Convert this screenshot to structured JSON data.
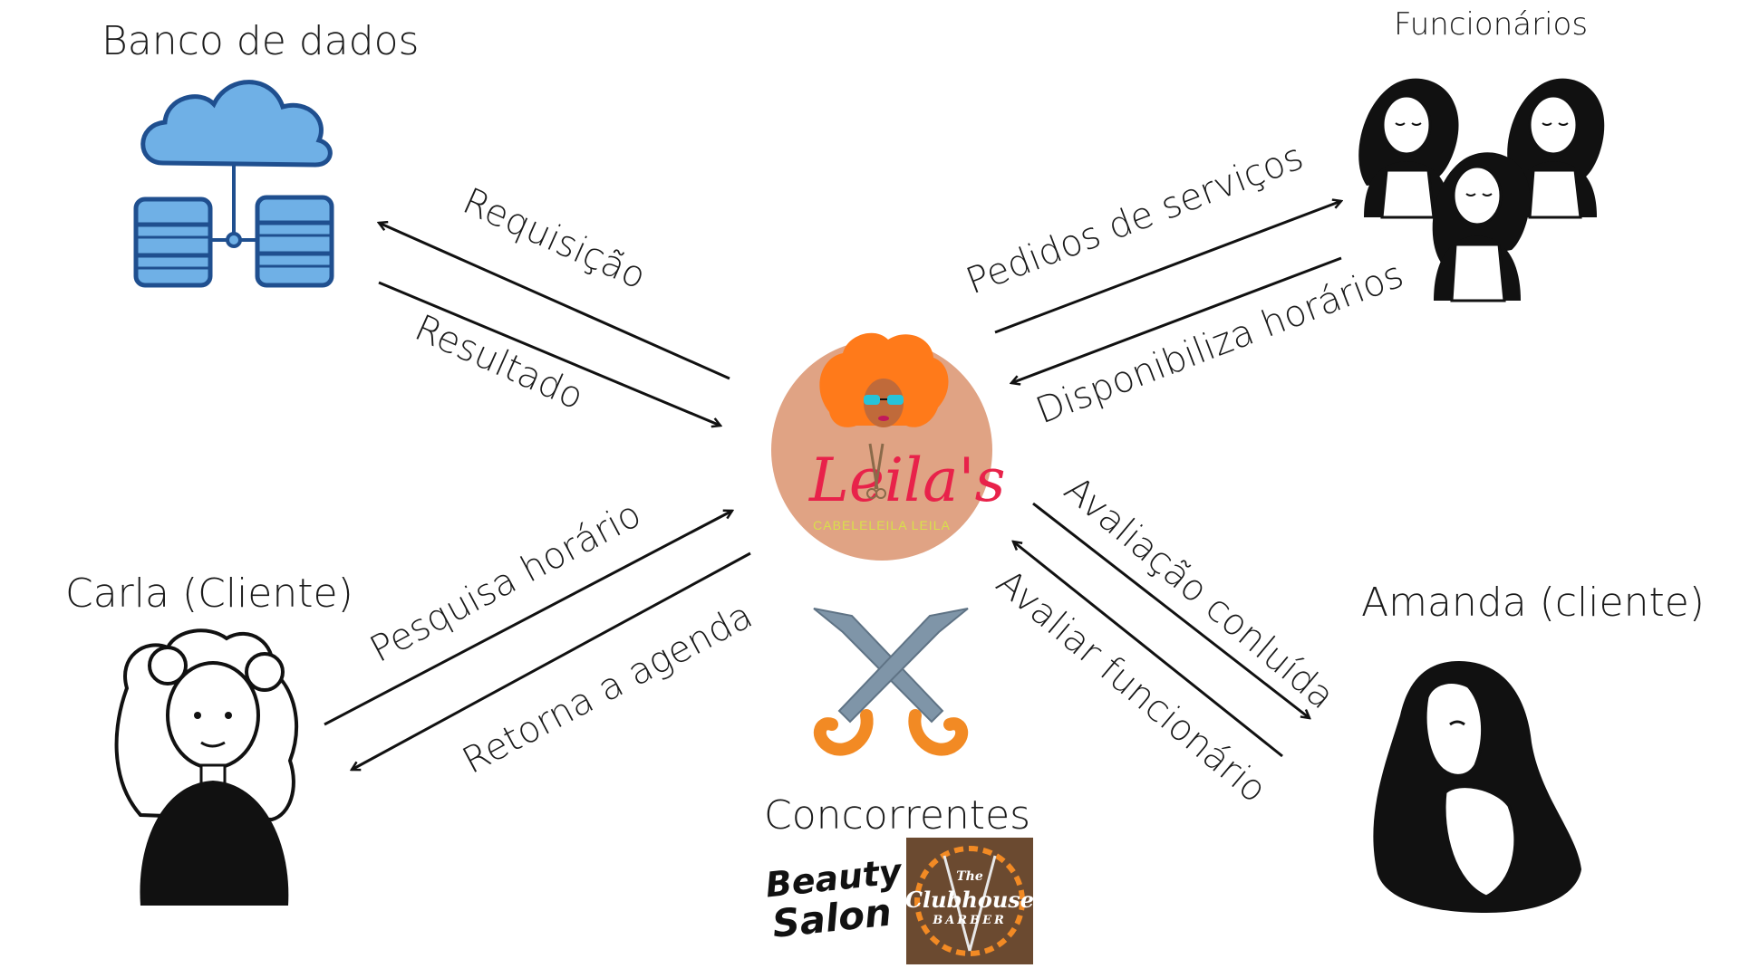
{
  "nodes": {
    "database": {
      "label": "Banco de dados"
    },
    "staff": {
      "label": "Funcionários"
    },
    "carla": {
      "label": "Carla (Cliente)"
    },
    "amanda": {
      "label": "Amanda (cliente)"
    },
    "competitors": {
      "label": "Concorrentes"
    },
    "center": {
      "logo_text": "Leila's",
      "subtitle": "CABELELEILA LEILA"
    }
  },
  "edges": {
    "requisicao": "Requisição",
    "resultado": "Resultado",
    "pedidos": "Pedidos de serviços",
    "disponibiliza": "Disponibiliza horários",
    "pesquisa": "Pesquisa horário",
    "retorna": "Retorna a agenda",
    "avaliacao_concluida": "Avaliação conluída",
    "avaliar": "Avaliar funcionário"
  },
  "brands": {
    "beauty_line1": "Beauty",
    "beauty_line2": "Salon",
    "club_small": "The",
    "club_main": "Clubhouse",
    "club_sub": "BARBER"
  },
  "colors": {
    "cloud_fill": "#6fb0e6",
    "cloud_stroke": "#1f4f8f",
    "logo_circle": "#e0a384",
    "hair": "#ff7a1a",
    "script": "#e8224a",
    "sword_blade": "#7f95a8",
    "sword_hilt": "#f28a24",
    "club_bg": "#6b4a30"
  }
}
